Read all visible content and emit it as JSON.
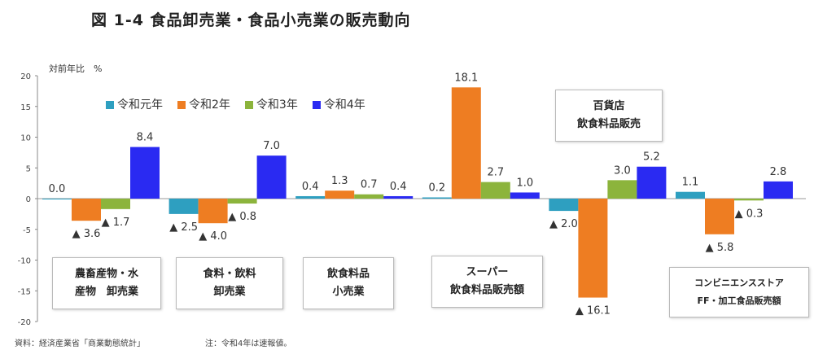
{
  "title": "図 1-4  食品卸売業・食品小売業の販売動向",
  "footer": {
    "source": "資料：経済産業省「商業動態統計」",
    "note": "注：令和4年は速報値。"
  },
  "chart_data": {
    "type": "bar",
    "ylabel": "対前年比　%",
    "ylim": [
      -20,
      20
    ],
    "yticks": [
      "20",
      "15",
      "10",
      "5",
      "0",
      "-5",
      "-10",
      "-15",
      "-20"
    ],
    "negative_prefix": "▲ ",
    "legend_position": "top",
    "categories": [
      "農畜産物・水産物　卸売業",
      "食料・飲料卸売業",
      "飲食料品小売業",
      "スーパー飲食料品販売額",
      "百貨店飲食料品販売",
      "コンビニエンスストアFF・加工食品販売額"
    ],
    "category_lines": [
      [
        "農畜産物・水",
        "産物　卸売業"
      ],
      [
        "食料・飲料",
        "卸売業"
      ],
      [
        "飲食料品",
        "小売業"
      ],
      [
        "スーパー",
        "飲食料品販売額"
      ],
      [
        "百貨店",
        "飲食料品販売"
      ],
      [
        "コンビニエンスストア",
        "FF・加工食品販売額"
      ]
    ],
    "series": [
      {
        "name": "令和元年",
        "color": "#2E9FC0",
        "values": [
          0.0,
          -2.5,
          0.4,
          0.2,
          -2.0,
          1.1
        ]
      },
      {
        "name": "令和2年",
        "color": "#EE7D22",
        "values": [
          -3.6,
          -4.0,
          1.3,
          18.1,
          -16.1,
          -5.8
        ]
      },
      {
        "name": "令和3年",
        "color": "#8CB43C",
        "values": [
          -1.7,
          -0.8,
          0.7,
          2.7,
          3.0,
          -0.3
        ]
      },
      {
        "name": "令和4年",
        "color": "#2A2AF2",
        "values": [
          8.4,
          7.0,
          0.4,
          1.0,
          5.2,
          2.8
        ]
      }
    ]
  }
}
